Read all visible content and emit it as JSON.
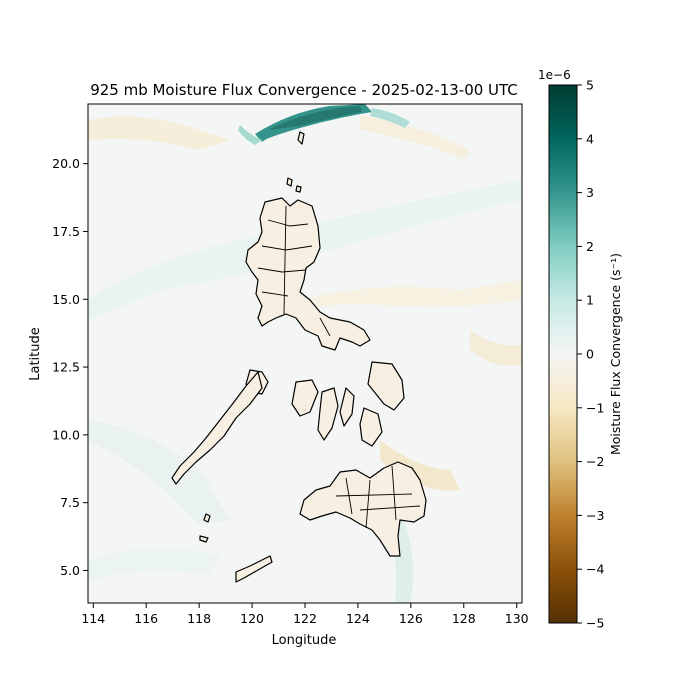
{
  "figure": {
    "title": "925 mb Moisture Flux Convergence - 2025-02-13-00 UTC",
    "xlabel": "Longitude",
    "ylabel": "Latitude"
  },
  "map": {
    "region": "Philippines",
    "extent": {
      "lon": [
        113.8,
        130.2
      ],
      "lat": [
        3.8,
        22.2
      ]
    },
    "x_ticks": [
      "114",
      "116",
      "118",
      "120",
      "122",
      "124",
      "126",
      "128",
      "130"
    ],
    "y_ticks": [
      "5.0",
      "7.5",
      "10.0",
      "12.5",
      "15.0",
      "17.5",
      "20.0"
    ],
    "features": [
      "coastlines",
      "province-boundaries"
    ]
  },
  "colorbar": {
    "label": "Moisture Flux Convergence (s⁻¹)",
    "exponent_label": "1e−6",
    "range": [
      -5,
      5
    ],
    "colormap": "BrBG",
    "tick_labels": [
      "5",
      "4",
      "3",
      "2",
      "1",
      "0",
      "−1",
      "−2",
      "−3",
      "−4",
      "−5"
    ],
    "colors": [
      "#003c30",
      "#01665e",
      "#35978f",
      "#80cdc1",
      "#c7eae5",
      "#f5f5f5",
      "#f6e8c3",
      "#dfc27d",
      "#bf812d",
      "#8c510a",
      "#543005"
    ]
  }
}
